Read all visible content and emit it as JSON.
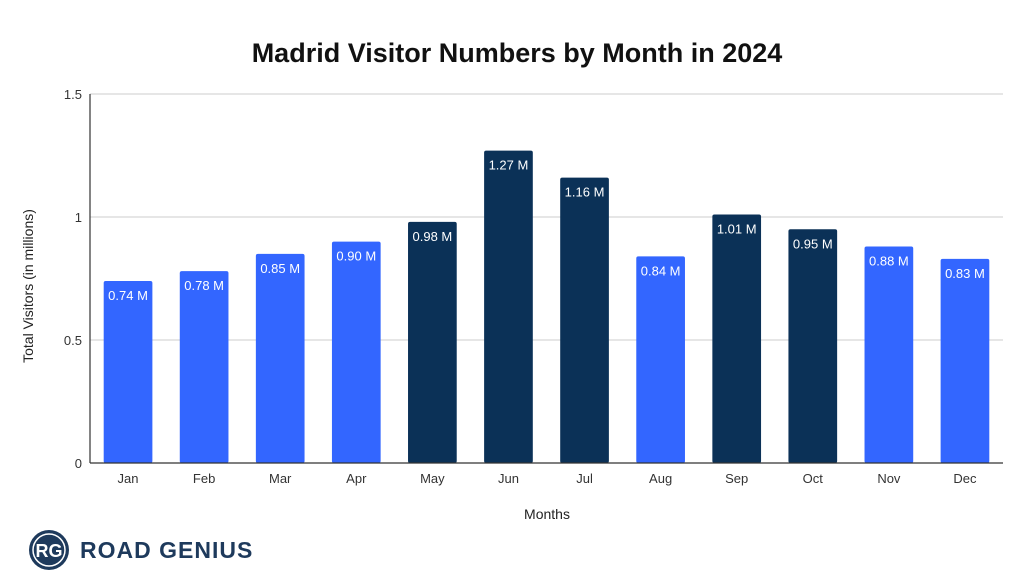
{
  "chart_data": {
    "type": "bar",
    "title": "Madrid Visitor Numbers by Month in 2024",
    "xlabel": "Months",
    "ylabel": "Total Visitors (in millions)",
    "ylim": [
      0,
      1.5
    ],
    "yticks": [
      0,
      0.5,
      1,
      1.5
    ],
    "ytick_labels": [
      "0",
      "0.5",
      "1",
      "1.5"
    ],
    "grid": true,
    "categories": [
      "Jan",
      "Feb",
      "Mar",
      "Apr",
      "May",
      "Jun",
      "Jul",
      "Aug",
      "Sep",
      "Oct",
      "Nov",
      "Dec"
    ],
    "values": [
      0.74,
      0.78,
      0.85,
      0.9,
      0.98,
      1.27,
      1.16,
      0.84,
      1.01,
      0.95,
      0.88,
      0.83
    ],
    "data_labels": [
      "0.74 M",
      "0.78 M",
      "0.85 M",
      "0.90 M",
      "0.98 M",
      "1.27 M",
      "1.16 M",
      "0.84 M",
      "1.01 M",
      "0.95 M",
      "0.88 M",
      "0.83 M"
    ],
    "highlighted": [
      false,
      false,
      false,
      false,
      true,
      true,
      true,
      false,
      true,
      true,
      false,
      false
    ],
    "colors": {
      "default_bar": "#3366ff",
      "highlight_bar": "#0b3157",
      "grid": "#cccccc",
      "axis": "#333333"
    }
  },
  "branding": {
    "logo_initials": "RG",
    "logo_text": "ROAD GENIUS",
    "logo_color": "#1e3a5c"
  }
}
